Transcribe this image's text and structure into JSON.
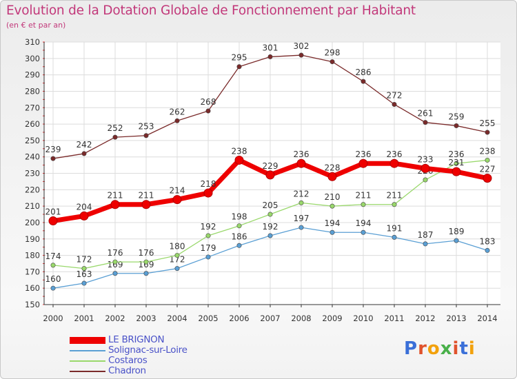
{
  "title": "Evolution de la Dotation Globale de Fonctionnement par Habitant",
  "subtitle": "(en € et par an)",
  "logo_text": "Proxiti",
  "chart_data": {
    "type": "line",
    "title": "Evolution de la Dotation Globale de Fonctionnement par Habitant",
    "subtitle": "(en € et par an)",
    "x": [
      "2000",
      "2001",
      "2002",
      "2003",
      "2004",
      "2005",
      "2006",
      "2007",
      "2008",
      "2009",
      "2010",
      "2011",
      "2012",
      "2013",
      "2014"
    ],
    "ylim": [
      150,
      310
    ],
    "yticks": [
      150,
      160,
      170,
      180,
      190,
      200,
      210,
      220,
      230,
      240,
      250,
      260,
      270,
      280,
      290,
      300,
      310
    ],
    "grid": true,
    "legend_position": "bottom-left",
    "series": [
      {
        "name": "LE BRIGNON",
        "color": "#ee0000",
        "values": [
          201,
          204,
          211,
          211,
          214,
          218,
          238,
          229,
          236,
          228,
          236,
          236,
          233,
          231,
          227
        ]
      },
      {
        "name": "Solignac-sur-Loire",
        "color": "#5a9fd4",
        "values": [
          160,
          163,
          169,
          169,
          172,
          179,
          186,
          192,
          197,
          194,
          194,
          191,
          187,
          189,
          183
        ]
      },
      {
        "name": "Costaros",
        "color": "#99d86b",
        "values": [
          174,
          172,
          176,
          176,
          180,
          192,
          198,
          205,
          212,
          210,
          211,
          211,
          226,
          236,
          238
        ]
      },
      {
        "name": "Chadron",
        "color": "#7a2a2a",
        "values": [
          239,
          242,
          252,
          253,
          262,
          268,
          295,
          301,
          302,
          298,
          286,
          272,
          261,
          259,
          255
        ]
      }
    ]
  }
}
